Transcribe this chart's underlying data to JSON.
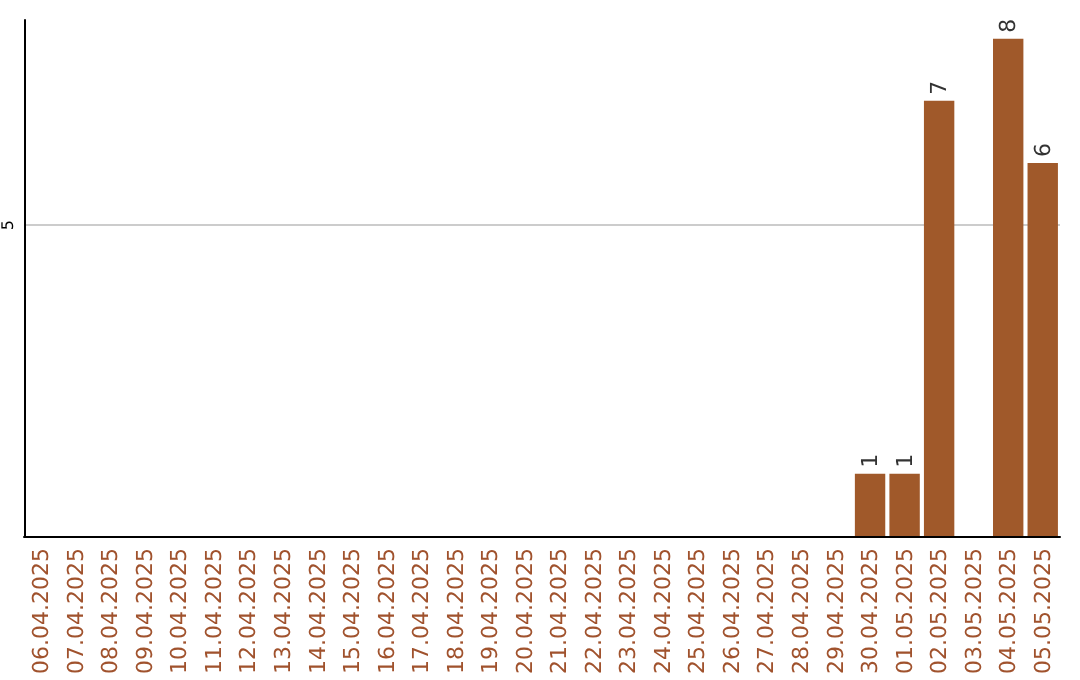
{
  "chart_data": {
    "type": "bar",
    "categories": [
      "06.04.2025",
      "07.04.2025",
      "08.04.2025",
      "09.04.2025",
      "10.04.2025",
      "11.04.2025",
      "12.04.2025",
      "13.04.2025",
      "14.04.2025",
      "15.04.2025",
      "16.04.2025",
      "17.04.2025",
      "18.04.2025",
      "19.04.2025",
      "20.04.2025",
      "21.04.2025",
      "22.04.2025",
      "23.04.2025",
      "24.04.2025",
      "25.04.2025",
      "26.04.2025",
      "27.04.2025",
      "28.04.2025",
      "29.04.2025",
      "30.04.2025",
      "01.05.2025",
      "02.05.2025",
      "03.05.2025",
      "04.05.2025",
      "05.05.2025"
    ],
    "values": [
      null,
      null,
      null,
      null,
      null,
      null,
      null,
      null,
      null,
      null,
      null,
      null,
      null,
      null,
      null,
      null,
      null,
      null,
      null,
      null,
      null,
      null,
      null,
      null,
      1,
      1,
      7,
      null,
      8,
      6
    ],
    "data_labels": true,
    "color": "#a0592a",
    "ylim": [
      0,
      8.3
    ],
    "yticks": [
      5
    ],
    "grid": "y"
  }
}
